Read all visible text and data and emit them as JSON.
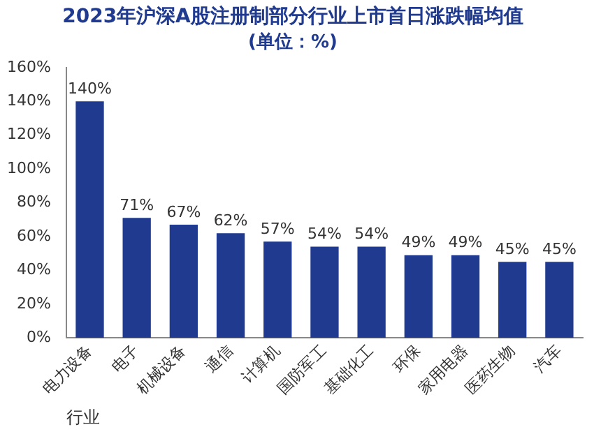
{
  "chart_data": {
    "type": "bar",
    "title": "2023年沪深A股注册制部分行业上市首日涨跌幅均值",
    "subtitle": "(单位：%)",
    "xlabel": "行业",
    "categories": [
      "电力设备",
      "电子",
      "机械设备",
      "通信",
      "计算机",
      "国防军工",
      "基础化工",
      "环保",
      "家用电器",
      "医药生物",
      "汽车"
    ],
    "values": [
      140,
      71,
      67,
      62,
      57,
      54,
      54,
      49,
      49,
      45,
      45
    ],
    "value_labels": [
      "140%",
      "71%",
      "67%",
      "62%",
      "57%",
      "54%",
      "54%",
      "49%",
      "49%",
      "45%",
      "45%"
    ],
    "color": "#1f3a8f",
    "ylim": [
      0,
      160
    ],
    "yticks": [
      {
        "value": 0,
        "label": "0%"
      },
      {
        "value": 20,
        "label": "20%"
      },
      {
        "value": 40,
        "label": "40%"
      },
      {
        "value": 60,
        "label": "60%"
      },
      {
        "value": 80,
        "label": "80%"
      },
      {
        "value": 100,
        "label": "100%"
      },
      {
        "value": 120,
        "label": "120%"
      },
      {
        "value": 140,
        "label": "140%"
      },
      {
        "value": 160,
        "label": "160%"
      }
    ],
    "grid": false,
    "legend": false
  }
}
